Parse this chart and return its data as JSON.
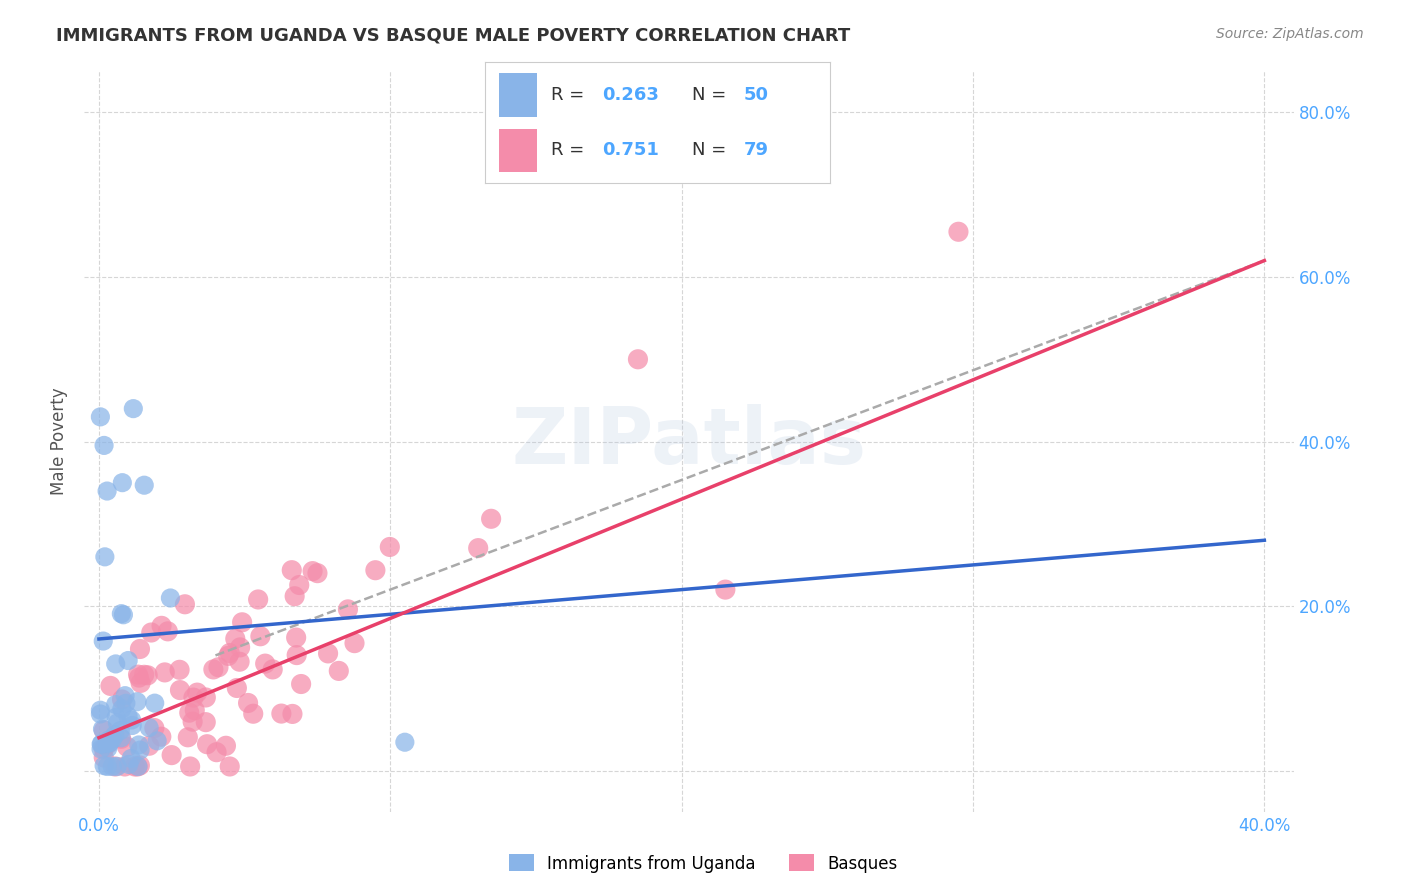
{
  "title": "IMMIGRANTS FROM UGANDA VS BASQUE MALE POVERTY CORRELATION CHART",
  "source": "Source: ZipAtlas.com",
  "xlabel_label": "Immigrants from Uganda",
  "xlabel2_label": "Basques",
  "ylabel": "Male Poverty",
  "legend_r1": "R = 0.263",
  "legend_n1": "N = 50",
  "legend_r2": "R = 0.751",
  "legend_n2": "N = 79",
  "blue_color": "#89b4e8",
  "pink_color": "#f48caa",
  "blue_line_color": "#3366cc",
  "pink_line_color": "#e8406a",
  "dash_color": "#aaaaaa",
  "watermark_text": "ZIPatlas",
  "background_color": "#ffffff",
  "grid_color": "#cccccc",
  "title_color": "#333333",
  "tick_color": "#4da6ff",
  "source_color": "#888888",
  "xlim": [
    -0.005,
    0.41
  ],
  "ylim": [
    -0.05,
    0.85
  ],
  "xticks": [
    0.0,
    0.1,
    0.2,
    0.3,
    0.4
  ],
  "yticks": [
    0.0,
    0.2,
    0.4,
    0.6,
    0.8
  ],
  "x_tick_labels": [
    "0.0%",
    "",
    "",
    "",
    "40.0%"
  ],
  "y_tick_labels_right": [
    "",
    "20.0%",
    "40.0%",
    "60.0%",
    "80.0%"
  ],
  "uganda_trend_x": [
    0.0,
    0.4
  ],
  "uganda_trend_y": [
    0.16,
    0.28
  ],
  "basque_trend_x": [
    0.0,
    0.4
  ],
  "basque_trend_y": [
    0.04,
    0.62
  ],
  "dash_trend_x": [
    0.04,
    0.4
  ],
  "dash_trend_y": [
    0.14,
    0.62
  ]
}
